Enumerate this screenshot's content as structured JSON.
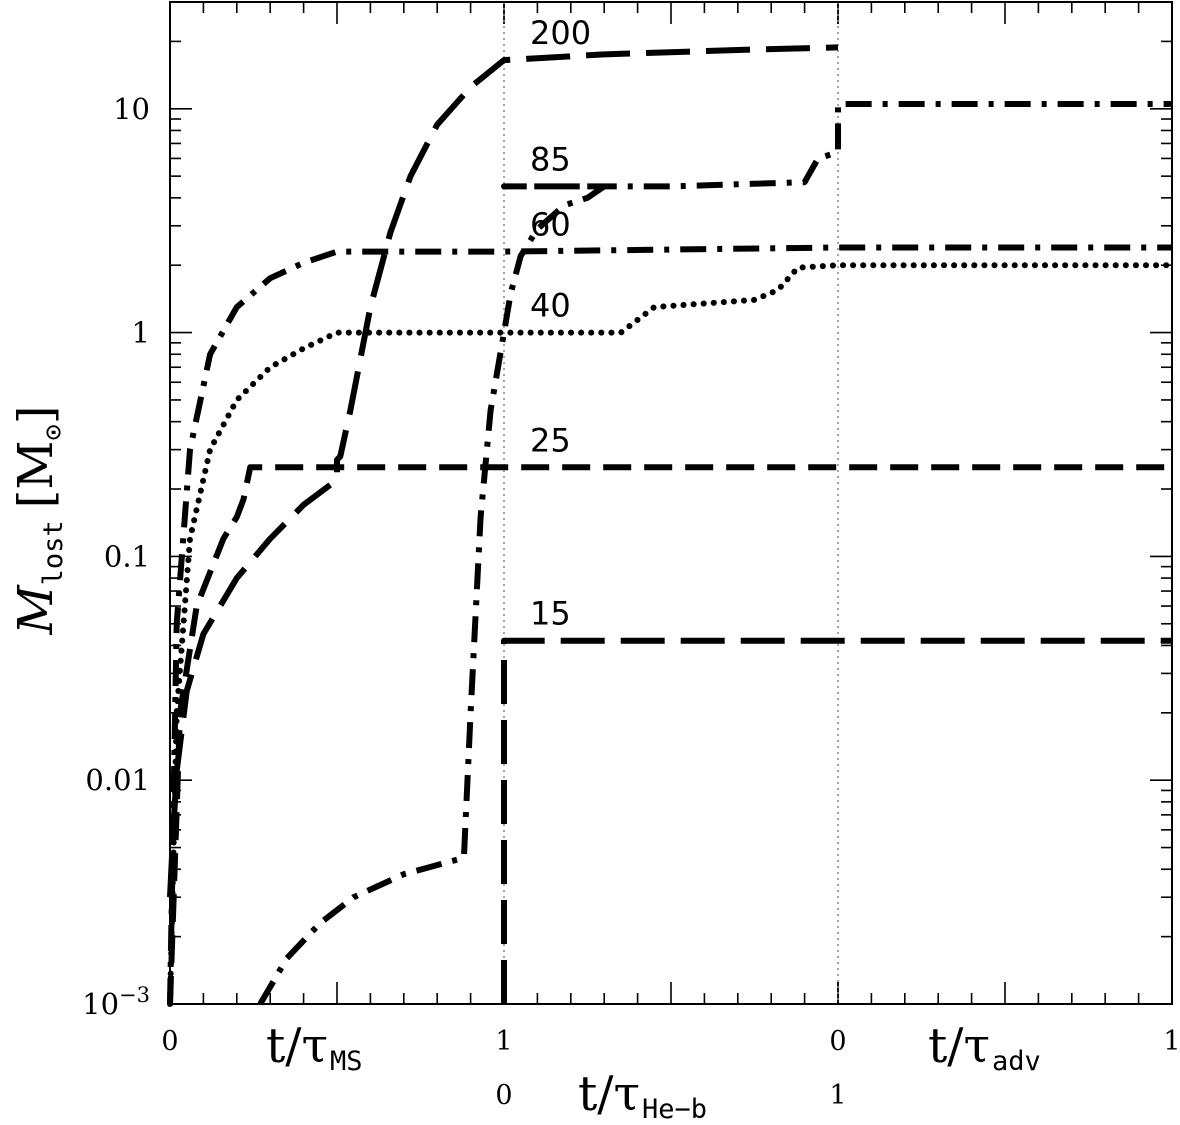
{
  "chart_data": {
    "type": "line",
    "title": "",
    "y_scale": "log",
    "ylim": [
      0.001,
      30
    ],
    "ylabel": {
      "main": "M",
      "sub": "lost",
      "unit": "M",
      "unit_sub": "⊙"
    },
    "y_tick_labels": [
      {
        "value": 0.001,
        "mantissa": "10",
        "exp": "−3"
      },
      {
        "value": 0.01,
        "label": "0.01"
      },
      {
        "value": 0.1,
        "label": "0.1"
      },
      {
        "value": 1,
        "label": "1"
      },
      {
        "value": 10,
        "label": "10"
      }
    ],
    "x_segments": [
      {
        "phase": "main sequence",
        "axis_label": {
          "main": "t/τ",
          "sub": "MS"
        },
        "range": [
          0,
          1
        ],
        "tick_labels": [
          "0",
          "1"
        ]
      },
      {
        "phase": "helium burning",
        "axis_label": {
          "main": "t/τ",
          "sub": "He−b"
        },
        "range": [
          0,
          1
        ],
        "tick_labels": [
          "0",
          "1"
        ]
      },
      {
        "phase": "advanced",
        "axis_label": {
          "main": "t/τ",
          "sub": "adv"
        },
        "range": [
          0,
          1
        ],
        "tick_labels": [
          "0",
          "1"
        ]
      }
    ],
    "series": [
      {
        "name": "200",
        "style": "long-dash",
        "ms": [
          [
            0.0,
            0.003
          ],
          [
            0.01,
            0.006
          ],
          [
            0.02,
            0.011
          ],
          [
            0.05,
            0.025
          ],
          [
            0.1,
            0.045
          ],
          [
            0.2,
            0.08
          ],
          [
            0.3,
            0.12
          ],
          [
            0.4,
            0.17
          ],
          [
            0.5,
            0.22
          ],
          [
            0.5,
            0.27
          ],
          [
            0.51,
            0.28
          ],
          [
            0.54,
            0.45
          ],
          [
            0.6,
            1.3
          ],
          [
            0.66,
            2.8
          ],
          [
            0.72,
            5.0
          ],
          [
            0.8,
            8.5
          ],
          [
            0.9,
            12.5
          ],
          [
            1.0,
            16.5
          ]
        ],
        "heb": [
          [
            0.0,
            16.5
          ],
          [
            0.3,
            17.5
          ],
          [
            0.7,
            18.3
          ],
          [
            1.0,
            18.8
          ]
        ],
        "adv": []
      },
      {
        "name": "85",
        "style": "dash-dot",
        "ms": [
          [
            0.27,
            0.001
          ],
          [
            0.35,
            0.0016
          ],
          [
            0.45,
            0.0023
          ],
          [
            0.55,
            0.003
          ],
          [
            0.7,
            0.0038
          ],
          [
            0.88,
            0.0045
          ],
          [
            0.9,
            0.02
          ],
          [
            0.93,
            0.15
          ],
          [
            0.96,
            0.45
          ],
          [
            1.0,
            1.0
          ],
          [
            1.02,
            1.5
          ],
          [
            1.05,
            2.2
          ],
          [
            1.1,
            2.9
          ],
          [
            1.18,
            3.7
          ],
          [
            1.25,
            4.0
          ],
          [
            1.3,
            4.5
          ]
        ],
        "heb": [
          [
            0.0,
            4.5
          ],
          [
            0.5,
            4.5
          ],
          [
            0.9,
            4.7
          ],
          [
            0.94,
            6.0
          ],
          [
            1.0,
            6.4
          ]
        ],
        "adv": [
          [
            0.0,
            10.5
          ],
          [
            1.0,
            10.5
          ]
        ]
      },
      {
        "name": "60",
        "style": "dash-dot",
        "ms": [
          [
            0.0,
            0.001
          ],
          [
            0.02,
            0.05
          ],
          [
            0.06,
            0.3
          ],
          [
            0.12,
            0.8
          ],
          [
            0.2,
            1.3
          ],
          [
            0.3,
            1.75
          ],
          [
            0.4,
            2.05
          ],
          [
            0.5,
            2.3
          ]
        ],
        "heb": [
          [
            0.0,
            2.3
          ],
          [
            1.0,
            2.4
          ]
        ],
        "adv": [
          [
            0.0,
            2.4
          ],
          [
            1.0,
            2.4
          ]
        ]
      },
      {
        "name": "40",
        "style": "dotted",
        "ms": [
          [
            0.0,
            0.001
          ],
          [
            0.02,
            0.02
          ],
          [
            0.06,
            0.12
          ],
          [
            0.12,
            0.3
          ],
          [
            0.2,
            0.5
          ],
          [
            0.3,
            0.7
          ],
          [
            0.4,
            0.85
          ],
          [
            0.5,
            1.0
          ]
        ],
        "heb": [
          [
            0.0,
            1.0
          ],
          [
            0.35,
            1.0
          ],
          [
            0.45,
            1.3
          ],
          [
            0.75,
            1.4
          ],
          [
            0.82,
            1.55
          ],
          [
            0.88,
            1.95
          ],
          [
            1.0,
            2.0
          ]
        ],
        "adv": [
          [
            0.0,
            2.0
          ],
          [
            1.0,
            2.0
          ]
        ]
      },
      {
        "name": "25",
        "style": "dash",
        "ms": [
          [
            0.0,
            0.001
          ],
          [
            0.03,
            0.02
          ],
          [
            0.08,
            0.06
          ],
          [
            0.16,
            0.12
          ],
          [
            0.2,
            0.15
          ],
          [
            0.22,
            0.18
          ],
          [
            0.24,
            0.25
          ]
        ],
        "heb": [
          [
            0.0,
            0.25
          ],
          [
            1.0,
            0.25
          ]
        ],
        "adv": [
          [
            0.0,
            0.25
          ],
          [
            1.0,
            0.25
          ]
        ]
      },
      {
        "name": "15",
        "style": "long-dash",
        "ms": [],
        "heb": [
          [
            0.0,
            0.001
          ],
          [
            0.0,
            0.042
          ],
          [
            1.0,
            0.042
          ]
        ],
        "adv": [
          [
            0.0,
            0.042
          ],
          [
            1.0,
            0.042
          ]
        ]
      }
    ],
    "legend": "none",
    "grid": false
  }
}
